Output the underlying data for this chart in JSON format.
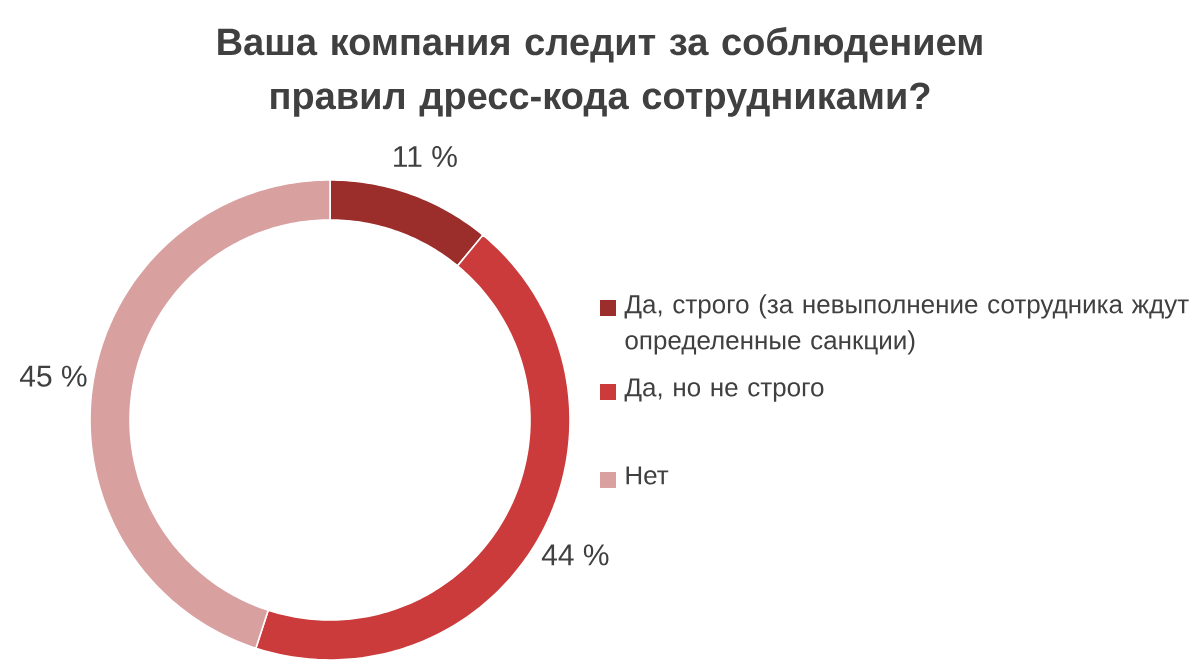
{
  "chart_data": {
    "type": "donut",
    "title": "Ваша компания следит за соблюдением правил дресс-кода сотрудниками?",
    "categories": [
      "Да, строго (за невыполнение сотрудника ждут определенные санкции)",
      "Да, но не строго",
      "Нет"
    ],
    "values": [
      11,
      44,
      45
    ],
    "colors": [
      "#9b2d2b",
      "#cc3b3b",
      "#d9a0a0"
    ],
    "value_labels": [
      "11 %",
      "44 %",
      "45 %"
    ],
    "legend": "right"
  }
}
